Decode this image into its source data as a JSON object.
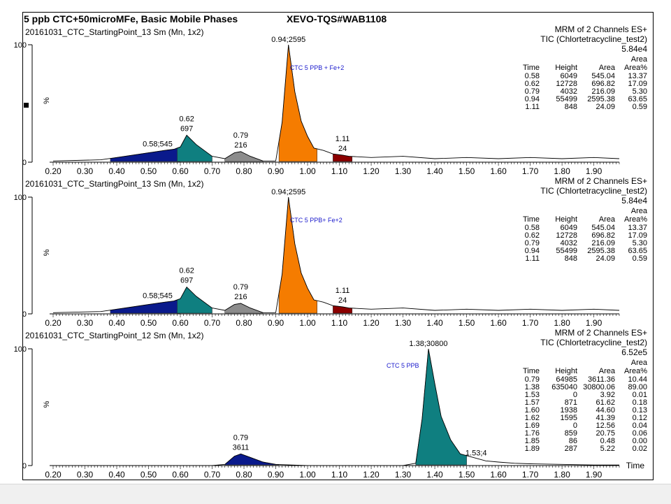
{
  "header": {
    "title": "5 ppb CTC+50microMFe, Basic Mobile Phases",
    "instrument": "XEVO-TQS#WAB1108"
  },
  "colors": {
    "navy": "#0a1a8c",
    "teal": "#0f7f80",
    "gray": "#8c8c8c",
    "orange": "#f57c00",
    "darkred": "#8b0000",
    "annotation_blue": "#1a1acc"
  },
  "chart_data": [
    {
      "type": "line",
      "sample": "20161031_CTC_StartingPoint_13 Sm (Mn, 1x2)",
      "channel": "MRM of 2 Channels ES+",
      "tic": "TIC (Chlortetracycline_test2)",
      "intensity": "5.84e4",
      "annotation": "CTC 5 PPB + Fe+2",
      "ylabel": "%",
      "ytick_label": "100",
      "ytick_zero": "0",
      "xlim": [
        0.2,
        1.98
      ],
      "ylim": [
        0,
        100
      ],
      "xticks": [
        "0.20",
        "0.30",
        "0.40",
        "0.50",
        "0.60",
        "0.70",
        "0.80",
        "0.90",
        "1.00",
        "1.10",
        "1.20",
        "1.30",
        "1.40",
        "1.50",
        "1.60",
        "1.70",
        "1.80",
        "1.90"
      ],
      "x_axis_title": "",
      "trace": {
        "x": [
          0.2,
          0.35,
          0.4,
          0.45,
          0.5,
          0.55,
          0.58,
          0.6,
          0.62,
          0.65,
          0.7,
          0.74,
          0.77,
          0.79,
          0.82,
          0.86,
          0.9,
          0.92,
          0.94,
          0.96,
          0.98,
          1.0,
          1.02,
          1.05,
          1.08,
          1.11,
          1.13,
          1.2,
          1.3,
          1.4,
          1.5,
          1.6,
          1.7,
          1.8,
          1.9,
          1.98
        ],
        "y": [
          1,
          2,
          4,
          6,
          8,
          10,
          11,
          13,
          23,
          15,
          5,
          3,
          8,
          9,
          5,
          1,
          1,
          34,
          100,
          60,
          35,
          22,
          12,
          10,
          7,
          6,
          5,
          4,
          5,
          3,
          4,
          3,
          4,
          3,
          4,
          3
        ]
      },
      "peaks": [
        {
          "label_top": "0.58;545",
          "label_bottom": "",
          "x": 0.58,
          "color": "navy",
          "fill_from": 0.38,
          "fill_to": 0.6
        },
        {
          "label_top": "0.62",
          "label_bottom": "697",
          "x": 0.62,
          "color": "teal",
          "fill_from": 0.59,
          "fill_to": 0.7
        },
        {
          "label_top": "0.79",
          "label_bottom": "216",
          "x": 0.79,
          "color": "gray",
          "fill_from": 0.74,
          "fill_to": 0.86
        },
        {
          "label_top": "0.94;2595",
          "label_bottom": "",
          "x": 0.94,
          "color": "orange",
          "fill_from": 0.91,
          "fill_to": 1.03
        },
        {
          "label_top": "1.11",
          "label_bottom": "24",
          "x": 1.11,
          "color": "darkred",
          "fill_from": 1.08,
          "fill_to": 1.14
        }
      ],
      "table": {
        "headers": [
          "Time",
          "Height",
          "Area",
          "Area%"
        ],
        "area_label": "Area",
        "rows": [
          [
            "0.58",
            "6049",
            "545.04",
            "13.37"
          ],
          [
            "0.62",
            "12728",
            "696.82",
            "17.09"
          ],
          [
            "0.79",
            "4032",
            "216.09",
            "5.30"
          ],
          [
            "0.94",
            "55499",
            "2595.38",
            "63.65"
          ],
          [
            "1.11",
            "848",
            "24.09",
            "0.59"
          ]
        ]
      }
    },
    {
      "type": "line",
      "sample": "20161031_CTC_StartingPoint_13 Sm (Mn, 1x2)",
      "channel": "MRM of 2 Channels ES+",
      "tic": "TIC (Chlortetracycline_test2)",
      "intensity": "5.84e4",
      "annotation": "CTC 5 PPB+ Fe+2",
      "ylabel": "%",
      "ytick_label": "100",
      "ytick_zero": "0",
      "xlim": [
        0.2,
        1.98
      ],
      "ylim": [
        0,
        100
      ],
      "xticks": [
        "0.20",
        "0.30",
        "0.40",
        "0.50",
        "0.60",
        "0.70",
        "0.80",
        "0.90",
        "1.00",
        "1.10",
        "1.20",
        "1.30",
        "1.40",
        "1.50",
        "1.60",
        "1.70",
        "1.80",
        "1.90"
      ],
      "x_axis_title": "",
      "trace": {
        "x": [
          0.2,
          0.35,
          0.4,
          0.45,
          0.5,
          0.55,
          0.58,
          0.6,
          0.62,
          0.65,
          0.7,
          0.74,
          0.77,
          0.79,
          0.82,
          0.86,
          0.9,
          0.92,
          0.94,
          0.96,
          0.98,
          1.0,
          1.02,
          1.05,
          1.08,
          1.11,
          1.13,
          1.2,
          1.3,
          1.4,
          1.5,
          1.6,
          1.7,
          1.8,
          1.9,
          1.98
        ],
        "y": [
          1,
          2,
          4,
          6,
          8,
          10,
          11,
          13,
          23,
          15,
          5,
          3,
          8,
          9,
          5,
          1,
          1,
          34,
          100,
          60,
          35,
          22,
          12,
          10,
          7,
          6,
          5,
          4,
          5,
          3,
          4,
          3,
          4,
          3,
          4,
          3
        ]
      },
      "peaks": [
        {
          "label_top": "0.58;545",
          "label_bottom": "",
          "x": 0.58,
          "color": "navy",
          "fill_from": 0.38,
          "fill_to": 0.6
        },
        {
          "label_top": "0.62",
          "label_bottom": "697",
          "x": 0.62,
          "color": "teal",
          "fill_from": 0.59,
          "fill_to": 0.7
        },
        {
          "label_top": "0.79",
          "label_bottom": "216",
          "x": 0.79,
          "color": "gray",
          "fill_from": 0.74,
          "fill_to": 0.86
        },
        {
          "label_top": "0.94;2595",
          "label_bottom": "",
          "x": 0.94,
          "color": "orange",
          "fill_from": 0.91,
          "fill_to": 1.03
        },
        {
          "label_top": "1.11",
          "label_bottom": "24",
          "x": 1.11,
          "color": "darkred",
          "fill_from": 1.08,
          "fill_to": 1.14
        }
      ],
      "table": {
        "headers": [
          "Time",
          "Height",
          "Area",
          "Area%"
        ],
        "area_label": "Area",
        "rows": [
          [
            "0.58",
            "6049",
            "545.04",
            "13.37"
          ],
          [
            "0.62",
            "12728",
            "696.82",
            "17.09"
          ],
          [
            "0.79",
            "4032",
            "216.09",
            "5.30"
          ],
          [
            "0.94",
            "55499",
            "2595.38",
            "63.65"
          ],
          [
            "1.11",
            "848",
            "24.09",
            "0.59"
          ]
        ]
      }
    },
    {
      "type": "line",
      "sample": "20161031_CTC_StartingPoint_12 Sm (Mn, 1x2)",
      "channel": "MRM of 2 Channels ES+",
      "tic": "TIC (Chlortetracycline_test2)",
      "intensity": "6.52e5",
      "annotation": "CTC 5 PPB",
      "ylabel": "%",
      "ytick_label": "100",
      "ytick_zero": "0",
      "xlim": [
        0.2,
        1.98
      ],
      "ylim": [
        0,
        100
      ],
      "xticks": [
        "0.20",
        "0.30",
        "0.40",
        "0.50",
        "0.60",
        "0.70",
        "0.80",
        "0.90",
        "1.00",
        "1.10",
        "1.20",
        "1.30",
        "1.40",
        "1.50",
        "1.60",
        "1.70",
        "1.80",
        "1.90"
      ],
      "x_axis_title": "Time",
      "trace": {
        "x": [
          0.2,
          0.6,
          0.7,
          0.74,
          0.77,
          0.79,
          0.82,
          0.86,
          0.9,
          0.95,
          1.0,
          1.1,
          1.2,
          1.3,
          1.34,
          1.36,
          1.38,
          1.4,
          1.42,
          1.45,
          1.48,
          1.52,
          1.56,
          1.6,
          1.65,
          1.7,
          1.8,
          1.9,
          1.98
        ],
        "y": [
          0,
          0,
          0,
          1,
          8,
          10,
          7,
          3,
          1,
          0.5,
          0,
          0,
          0,
          0,
          2,
          40,
          100,
          70,
          42,
          22,
          10,
          7,
          4,
          3,
          2,
          1.5,
          1,
          0.5,
          0.5
        ]
      },
      "peaks": [
        {
          "label_top": "0.79",
          "label_bottom": "3611",
          "x": 0.79,
          "color": "navy",
          "fill_from": 0.74,
          "fill_to": 0.91
        },
        {
          "label_top": "1.38;30800",
          "label_bottom": "",
          "x": 1.38,
          "color": "teal",
          "fill_from": 1.34,
          "fill_to": 1.5
        },
        {
          "label_top": "1.53;4",
          "label_bottom": "",
          "x": 1.53,
          "color": "none",
          "fill_from": 1.53,
          "fill_to": 1.53
        }
      ],
      "table": {
        "headers": [
          "Time",
          "Height",
          "Area",
          "Area%"
        ],
        "area_label": "Area",
        "rows": [
          [
            "0.79",
            "64985",
            "3611.36",
            "10.44"
          ],
          [
            "1.38",
            "635040",
            "30800.06",
            "89.00"
          ],
          [
            "1.53",
            "0",
            "3.92",
            "0.01"
          ],
          [
            "1.57",
            "871",
            "61.62",
            "0.18"
          ],
          [
            "1.60",
            "1938",
            "44.60",
            "0.13"
          ],
          [
            "1.62",
            "1595",
            "41.39",
            "0.12"
          ],
          [
            "1.69",
            "0",
            "12.56",
            "0.04"
          ],
          [
            "1.76",
            "859",
            "20.75",
            "0.06"
          ],
          [
            "1.85",
            "86",
            "0.48",
            "0.00"
          ],
          [
            "1.89",
            "287",
            "5.22",
            "0.02"
          ]
        ]
      }
    }
  ]
}
